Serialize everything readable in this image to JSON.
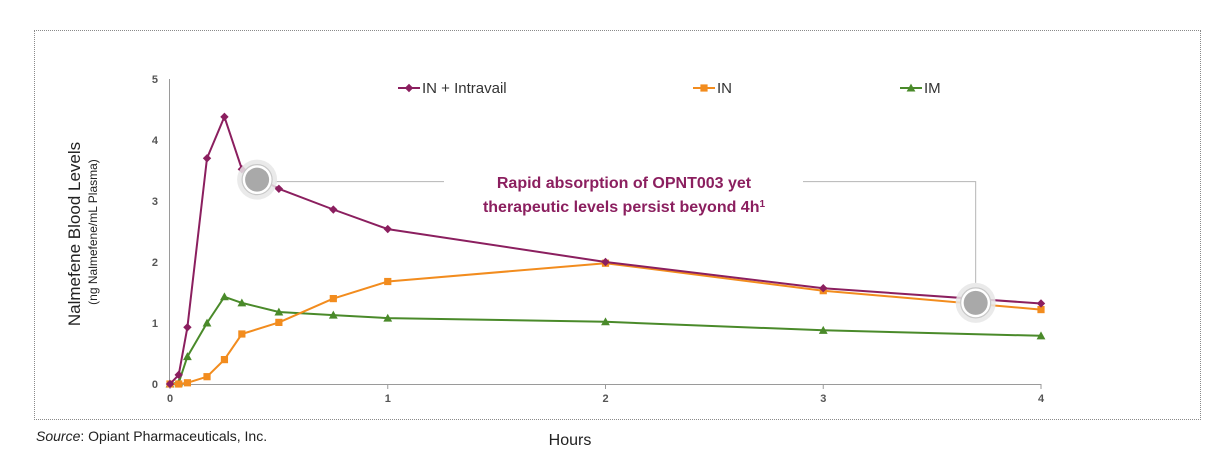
{
  "chart_data": {
    "type": "line",
    "xlabel": "Hours",
    "ylabel": "Nalmefene Blood Levels",
    "ylabel_sub": "(ng Nalmefene/mL Plasma)",
    "xlim": [
      0,
      4
    ],
    "ylim": [
      0,
      5
    ],
    "x_ticks": [
      0,
      1,
      2,
      3,
      4
    ],
    "y_ticks": [
      0,
      1,
      2,
      3,
      4,
      5
    ],
    "x_tick_labels": [
      "0",
      "1",
      "2",
      "3",
      "4"
    ],
    "y_tick_labels": [
      "0",
      "1",
      "2",
      "3",
      "4",
      "5"
    ],
    "grid": false,
    "legend_position": "top",
    "series": [
      {
        "name": "IN + Intravail",
        "color": "#8b1f5f",
        "marker": "diamond",
        "x": [
          0,
          0.04,
          0.08,
          0.17,
          0.25,
          0.33,
          0.5,
          0.75,
          1,
          2,
          3,
          4
        ],
        "y": [
          0,
          0.15,
          0.93,
          3.7,
          4.38,
          3.52,
          3.2,
          2.86,
          2.54,
          2.0,
          1.57,
          1.32
        ]
      },
      {
        "name": "IN",
        "color": "#f28c1e",
        "marker": "square",
        "x": [
          0,
          0.04,
          0.08,
          0.17,
          0.25,
          0.33,
          0.5,
          0.75,
          1,
          2,
          3,
          4
        ],
        "y": [
          0,
          0,
          0.02,
          0.12,
          0.4,
          0.82,
          1.01,
          1.4,
          1.68,
          1.98,
          1.53,
          1.22
        ]
      },
      {
        "name": "IM",
        "color": "#4a8a2a",
        "marker": "triangle",
        "x": [
          0,
          0.04,
          0.08,
          0.17,
          0.25,
          0.33,
          0.5,
          0.75,
          1,
          2,
          3,
          4
        ],
        "y": [
          0,
          0.02,
          0.45,
          1.0,
          1.43,
          1.33,
          1.18,
          1.13,
          1.08,
          1.02,
          0.88,
          0.79
        ]
      }
    ],
    "annotation": {
      "text_line1": "Rapid absorption of OPNT003 yet",
      "text_line2": "therapeutic levels persist beyond 4h",
      "superscript": "1",
      "color": "#8b1f5f",
      "highlight_points": [
        {
          "x": 0.4,
          "y": 3.35
        },
        {
          "x": 3.7,
          "y": 1.33
        }
      ]
    }
  },
  "source": {
    "label": "Source",
    "text": ": Opiant Pharmaceuticals, Inc."
  }
}
